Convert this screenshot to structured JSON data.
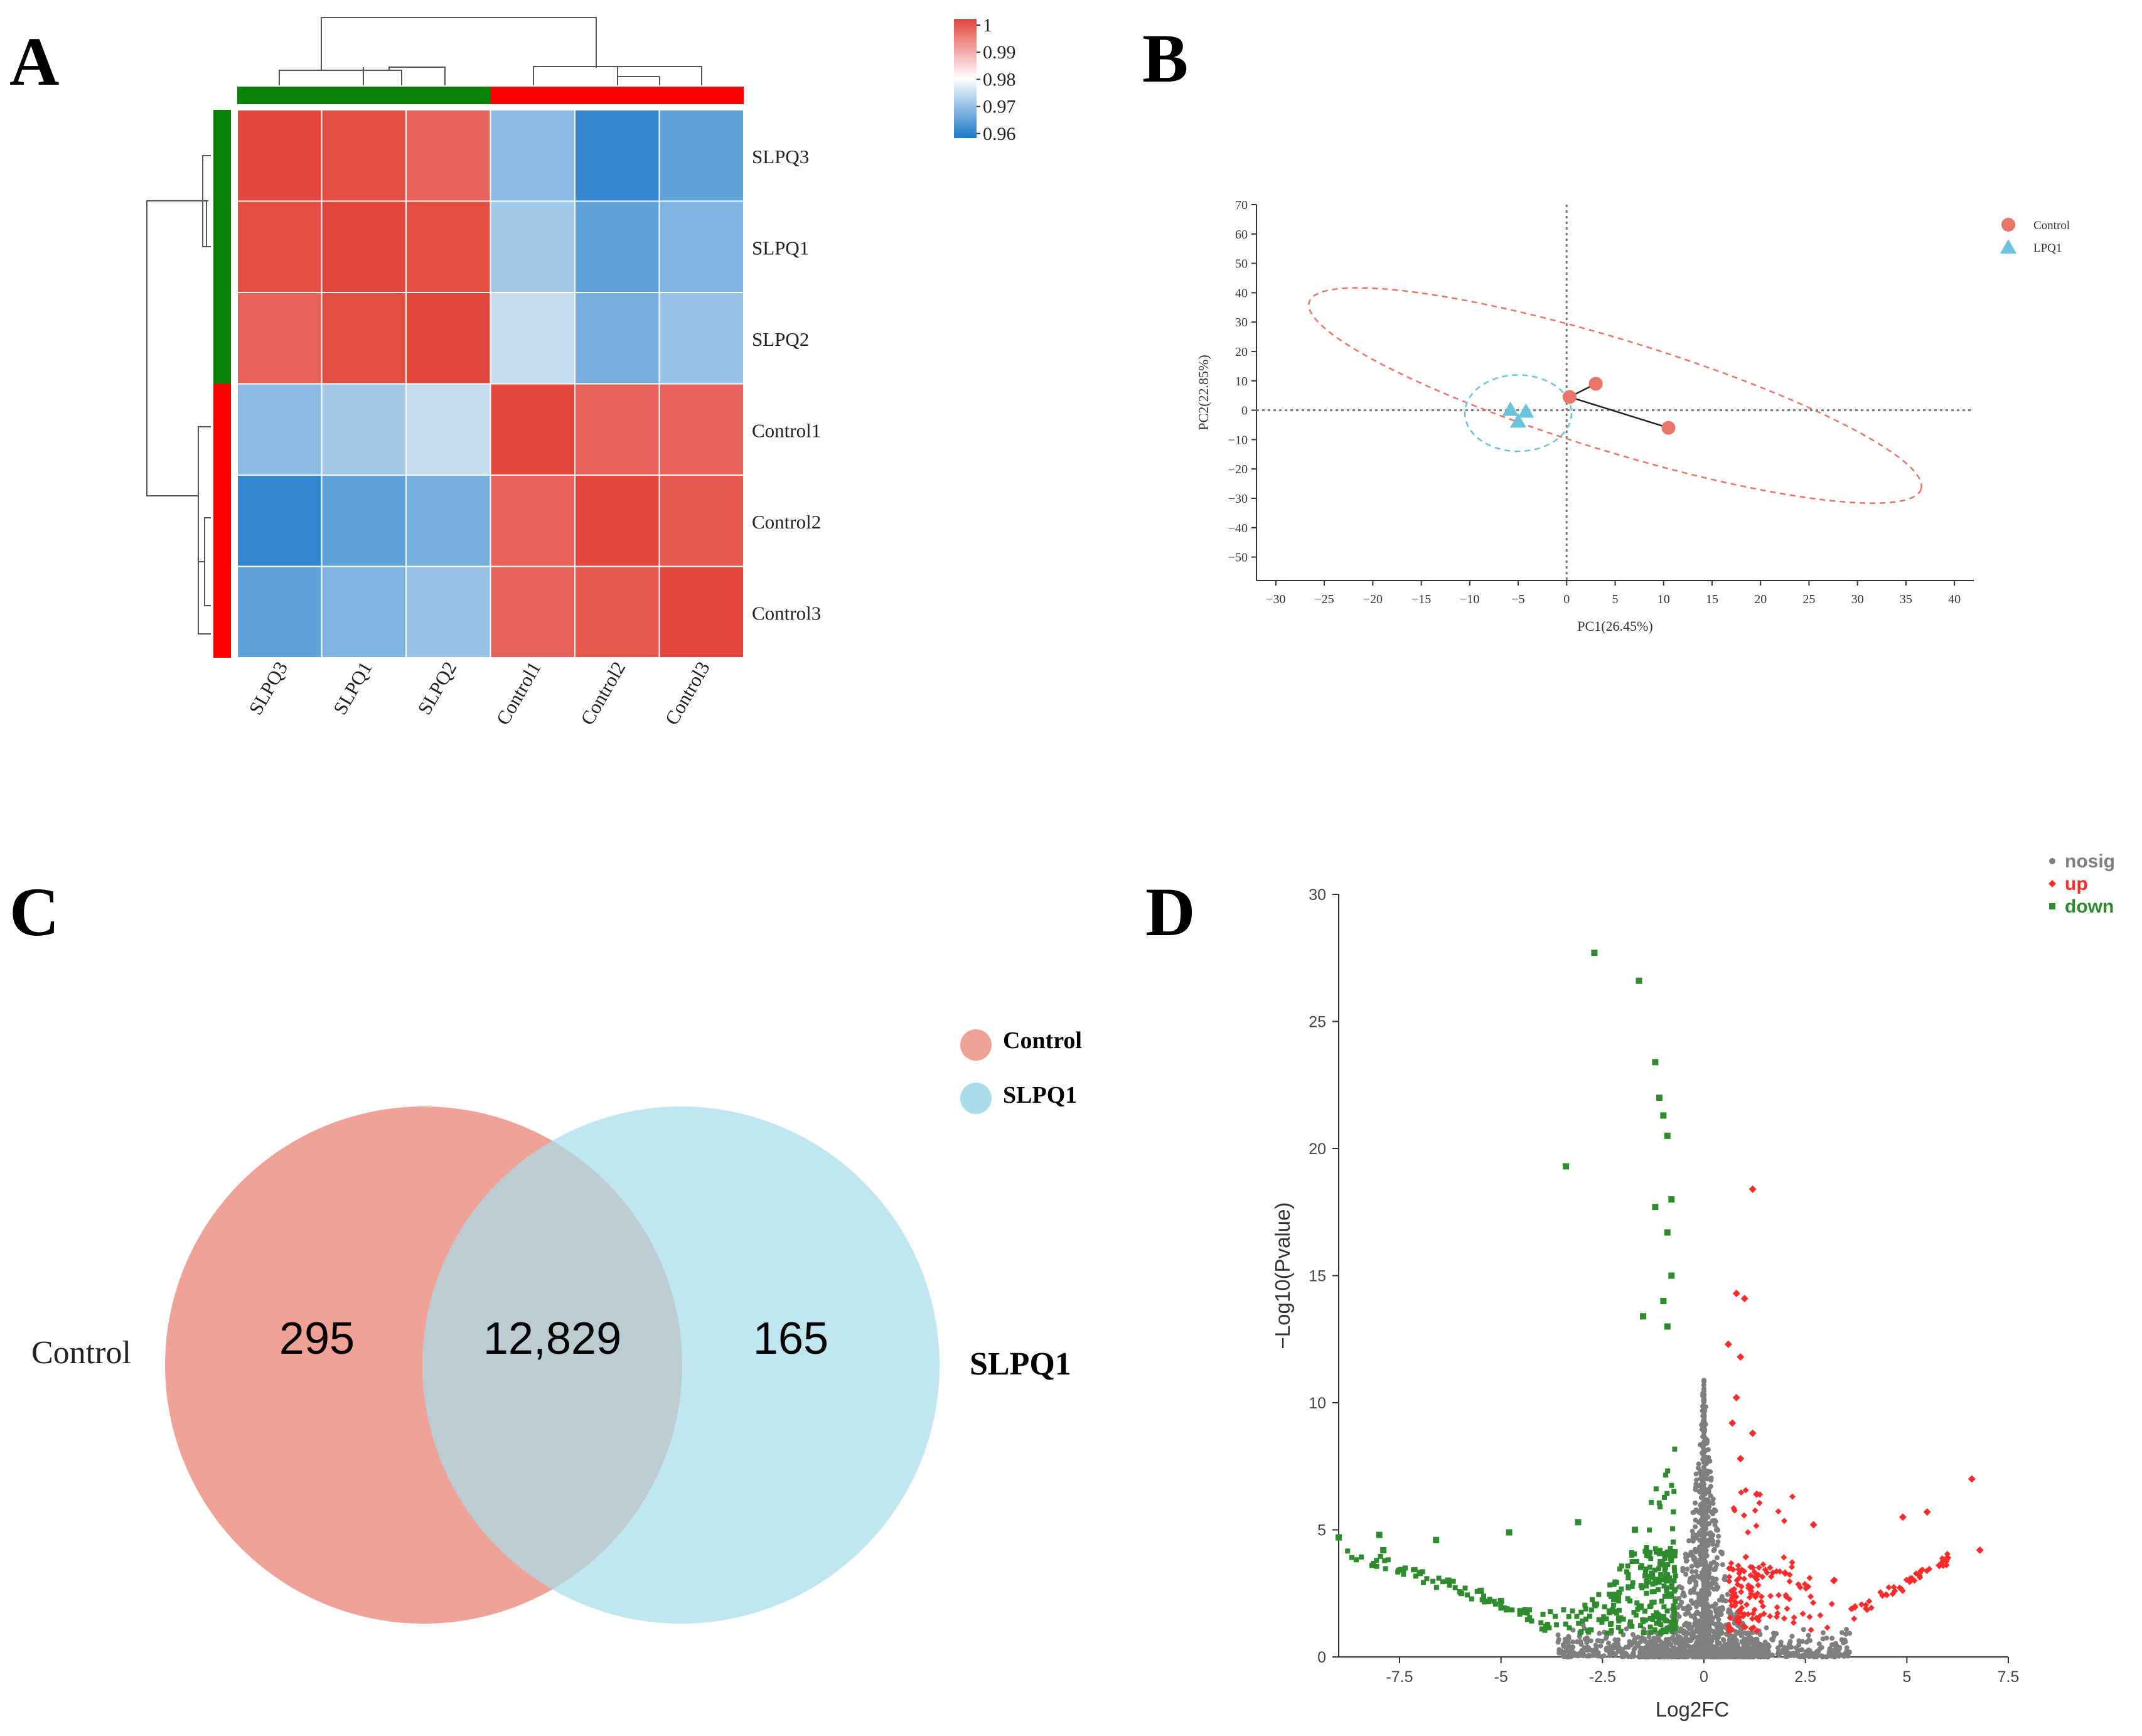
{
  "panels": {
    "a": "A",
    "b": "B",
    "c": "C",
    "d": "D"
  },
  "chart_data": [
    {
      "id": "A",
      "type": "heatmap",
      "rows": [
        "SLPQ3",
        "SLPQ1",
        "SLPQ2",
        "Control1",
        "Control2",
        "Control3"
      ],
      "columns": [
        "SLPQ3",
        "SLPQ1",
        "SLPQ2",
        "Control1",
        "Control2",
        "Control3"
      ],
      "groups": [
        {
          "name": "SLPQ",
          "members": [
            "SLPQ3",
            "SLPQ1",
            "SLPQ2"
          ],
          "color": "#0a820a"
        },
        {
          "name": "Control",
          "members": [
            "Control1",
            "Control2",
            "Control3"
          ],
          "color": "#ff0000"
        }
      ],
      "values": [
        [
          1.0,
          0.999,
          0.997,
          0.97,
          0.962,
          0.966
        ],
        [
          0.999,
          1.0,
          0.999,
          0.972,
          0.966,
          0.969
        ],
        [
          0.997,
          0.999,
          1.0,
          0.975,
          0.968,
          0.971
        ],
        [
          0.97,
          0.972,
          0.975,
          1.0,
          0.997,
          0.997
        ],
        [
          0.962,
          0.966,
          0.968,
          0.997,
          1.0,
          0.998
        ],
        [
          0.966,
          0.969,
          0.971,
          0.997,
          0.998,
          1.0
        ]
      ],
      "colorbar": {
        "ticks": [
          "1",
          "0.99",
          "0.98",
          "0.97",
          "0.96"
        ],
        "min": 0.96,
        "max": 1.0,
        "colors": {
          "low": "#1a78c8",
          "mid": "#ffffff",
          "high": "#e3463a"
        }
      }
    },
    {
      "id": "B",
      "type": "scatter",
      "xlabel": "PC1(26.45%)",
      "ylabel": "PC2(22.85%)",
      "xlim": [
        -32,
        42
      ],
      "ylim": [
        -58,
        70
      ],
      "xticks": [
        -30,
        -25,
        -20,
        -15,
        -10,
        -5,
        0,
        5,
        10,
        15,
        20,
        25,
        30,
        35,
        40
      ],
      "yticks": [
        70,
        60,
        50,
        40,
        30,
        20,
        10,
        0,
        -10,
        -20,
        -30,
        -40,
        -50
      ],
      "series": [
        {
          "name": "Control",
          "marker": "circle",
          "color": "#e8756a",
          "points": [
            [
              0.3,
              4.5
            ],
            [
              3.0,
              9.0
            ],
            [
              10.5,
              -6.0
            ]
          ],
          "ellipse": {
            "cx": 5,
            "cy": 5,
            "rx": 33,
            "ry": 19,
            "angle": -17
          }
        },
        {
          "name": "LPQ1",
          "marker": "triangle",
          "color": "#6cc3dc",
          "points": [
            [
              -5.8,
              0.2
            ],
            [
              -4.2,
              -0.4
            ],
            [
              -5.0,
              -3.8
            ]
          ],
          "ellipse": {
            "cx": -5,
            "cy": -1,
            "rx": 5.5,
            "ry": 13,
            "angle": 0
          }
        }
      ]
    },
    {
      "id": "C",
      "type": "venn",
      "sets": [
        {
          "name": "Control",
          "color": "#f0a297"
        },
        {
          "name": "SLPQ1",
          "color": "#a8dce9"
        }
      ],
      "regions": {
        "only_control": "295",
        "intersection": "12,829",
        "only_slpq1": "165"
      }
    },
    {
      "id": "D",
      "type": "scatter",
      "title": "",
      "xlabel": "Log2FC",
      "ylabel": "−Log10(Pvalue)",
      "xlim": [
        -9,
        7.5
      ],
      "ylim": [
        0,
        30
      ],
      "xticks": [
        "-7.5",
        "-5",
        "-2.5",
        "0",
        "2.5",
        "5",
        "7.5"
      ],
      "yticks": [
        "0",
        "5",
        "10",
        "15",
        "20",
        "25",
        "30"
      ],
      "legend": [
        {
          "name": "nosig",
          "color": "#7f7f7f"
        },
        {
          "name": "up",
          "color": "#ff2a2a"
        },
        {
          "name": "down",
          "color": "#2e8b2e"
        }
      ],
      "highlight_points": {
        "down": [
          [
            -2.7,
            27.7
          ],
          [
            -1.6,
            26.6
          ],
          [
            -1.2,
            23.4
          ],
          [
            -1.1,
            22.0
          ],
          [
            -1.0,
            21.3
          ],
          [
            -0.9,
            20.5
          ],
          [
            -3.4,
            19.3
          ],
          [
            -1.2,
            17.7
          ],
          [
            -0.8,
            18.0
          ],
          [
            -0.9,
            16.7
          ],
          [
            -0.8,
            15.0
          ],
          [
            -1.0,
            14.0
          ],
          [
            -1.5,
            13.4
          ],
          [
            -0.9,
            13.0
          ],
          [
            -9.0,
            4.7
          ],
          [
            -8.0,
            4.8
          ],
          [
            -7.9,
            4.2
          ],
          [
            -6.6,
            4.6
          ],
          [
            -4.8,
            4.9
          ],
          [
            -3.1,
            5.3
          ],
          [
            -1.7,
            5.0
          ],
          [
            -7.0,
            3.3
          ],
          [
            -6.3,
            3.0
          ],
          [
            -5.5,
            2.6
          ],
          [
            -5.0,
            2.2
          ]
        ],
        "up": [
          [
            1.2,
            18.4
          ],
          [
            0.8,
            14.3
          ],
          [
            1.0,
            14.1
          ],
          [
            0.6,
            12.3
          ],
          [
            0.9,
            11.8
          ],
          [
            0.8,
            10.2
          ],
          [
            0.7,
            9.2
          ],
          [
            1.2,
            8.8
          ],
          [
            0.9,
            7.8
          ],
          [
            1.3,
            6.4
          ],
          [
            2.7,
            5.2
          ],
          [
            4.9,
            5.5
          ],
          [
            5.5,
            5.7
          ],
          [
            6.6,
            7.0
          ],
          [
            6.8,
            4.2
          ],
          [
            6.0,
            3.9
          ],
          [
            5.8,
            3.6
          ],
          [
            3.2,
            3.0
          ],
          [
            2.0,
            3.3
          ]
        ]
      }
    }
  ],
  "venn_labels": {
    "left": "Control",
    "right": "SLPQ1"
  }
}
